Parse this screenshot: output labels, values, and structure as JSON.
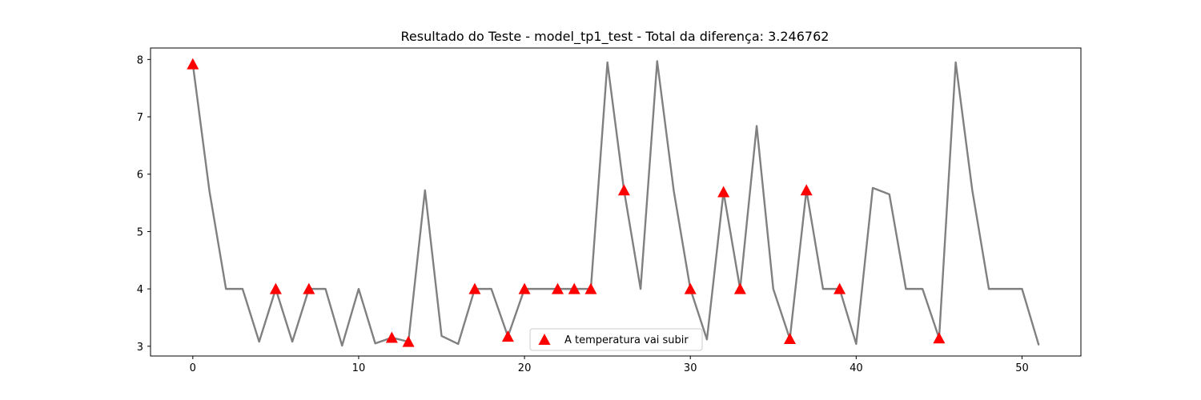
{
  "chart_data": {
    "type": "line",
    "title": "Resultado do Teste - model_tp1_test - Total da diferença: 3.246762",
    "xlabel": "",
    "ylabel": "",
    "xlim": [
      -2.55,
      53.55
    ],
    "ylim": [
      2.83,
      8.2
    ],
    "xticks": [
      0,
      10,
      20,
      30,
      40,
      50
    ],
    "yticks": [
      3,
      4,
      5,
      6,
      7,
      8
    ],
    "grid": false,
    "legend_position": "lower-center",
    "series": [
      {
        "kind": "line",
        "color": "#808080",
        "x": [
          0,
          1,
          2,
          3,
          4,
          5,
          6,
          7,
          8,
          9,
          10,
          11,
          12,
          13,
          14,
          15,
          16,
          17,
          18,
          19,
          20,
          21,
          22,
          23,
          24,
          25,
          26,
          27,
          28,
          29,
          30,
          31,
          32,
          33,
          34,
          35,
          36,
          37,
          38,
          39,
          40,
          41,
          42,
          43,
          44,
          45,
          46,
          47,
          48,
          49,
          50,
          51
        ],
        "y": [
          7.92,
          5.71,
          4.0,
          4.0,
          3.08,
          4.0,
          3.08,
          4.0,
          4.0,
          3.01,
          4.0,
          3.05,
          3.15,
          3.08,
          5.72,
          3.18,
          3.04,
          4.0,
          4.0,
          3.17,
          4.0,
          4.0,
          4.0,
          4.0,
          4.0,
          7.95,
          5.72,
          4.0,
          7.97,
          5.71,
          4.0,
          3.12,
          5.69,
          4.0,
          6.84,
          4.0,
          3.13,
          5.72,
          4.0,
          4.0,
          3.04,
          5.76,
          5.65,
          4.0,
          4.0,
          3.14,
          7.95,
          5.72,
          4.0,
          4.0,
          4.0,
          3.03
        ]
      },
      {
        "kind": "marker",
        "name": "A temperatura vai subir",
        "color": "#ff0000",
        "marker": "triangle-up",
        "x": [
          0,
          5,
          7,
          12,
          13,
          17,
          19,
          20,
          22,
          23,
          24,
          26,
          30,
          32,
          33,
          36,
          37,
          39,
          45
        ],
        "y": [
          7.92,
          4.0,
          4.0,
          3.15,
          3.08,
          4.0,
          3.17,
          4.0,
          4.0,
          4.0,
          4.0,
          5.72,
          4.0,
          5.69,
          4.0,
          3.13,
          5.72,
          4.0,
          3.14
        ]
      }
    ]
  }
}
